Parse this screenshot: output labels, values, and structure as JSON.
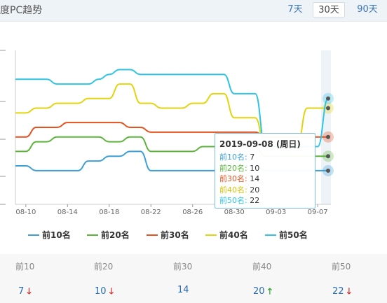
{
  "header": {
    "title": "度PC趋势",
    "ranges": [
      {
        "label": "7天",
        "active": false
      },
      {
        "label": "30天",
        "active": true
      },
      {
        "label": "90天",
        "active": false
      }
    ]
  },
  "chart_data": {
    "type": "line",
    "x": [
      "08-09",
      "08-10",
      "08-11",
      "08-12",
      "08-13",
      "08-14",
      "08-15",
      "08-16",
      "08-17",
      "08-18",
      "08-19",
      "08-20",
      "08-21",
      "08-22",
      "08-23",
      "08-24",
      "08-25",
      "08-26",
      "08-27",
      "08-28",
      "08-29",
      "08-30",
      "08-31",
      "09-01",
      "09-02",
      "09-03",
      "09-04",
      "09-05",
      "09-06",
      "09-07",
      "09-08"
    ],
    "xtick_labels": [
      "08-10",
      "08-14",
      "08-18",
      "08-22",
      "08-26",
      "08-30",
      "09-03",
      "09-07"
    ],
    "ylim": [
      0,
      32
    ],
    "series": [
      {
        "name": "前10名",
        "color": "#3d9fd8",
        "values": [
          8,
          8,
          7,
          7,
          7,
          7,
          7,
          9,
          9,
          10,
          10,
          11,
          11,
          7,
          7,
          7,
          7,
          7,
          7,
          7,
          8,
          8,
          8,
          8,
          7,
          7,
          7,
          7,
          7,
          7,
          7
        ]
      },
      {
        "name": "前20名",
        "color": "#5cb53a",
        "values": [
          11,
          11,
          13,
          13,
          14,
          14,
          14,
          14,
          14,
          13,
          13,
          14,
          14,
          11,
          11,
          11,
          11,
          11,
          12,
          12,
          12,
          12,
          12,
          12,
          10,
          10,
          10,
          10,
          10,
          10,
          10
        ]
      },
      {
        "name": "前30名",
        "color": "#e5511f",
        "values": [
          14,
          14,
          16,
          16,
          16,
          17,
          17,
          17,
          17,
          17,
          17,
          16,
          16,
          15,
          15,
          15,
          15,
          15,
          15,
          15,
          15,
          15,
          15,
          15,
          14,
          14,
          14,
          14,
          14,
          14,
          14
        ]
      },
      {
        "name": "前40名",
        "color": "#e2d40e",
        "values": [
          19,
          19,
          20,
          20,
          21,
          21,
          21,
          22,
          22,
          22,
          25,
          25,
          21,
          21,
          20,
          20,
          20,
          21,
          21,
          23,
          23,
          18,
          18,
          18,
          12,
          12,
          12,
          12,
          20,
          20,
          20
        ]
      },
      {
        "name": "前50名",
        "color": "#2ec4e6",
        "values": [
          26,
          26,
          26,
          26,
          25,
          25,
          25,
          25,
          26,
          27,
          28,
          28,
          27,
          27,
          27,
          27,
          27,
          27,
          27,
          27,
          27,
          23,
          23,
          23,
          12,
          12,
          12,
          12,
          12,
          12,
          22
        ]
      }
    ]
  },
  "legend": [
    {
      "label": "前10名",
      "color": "#3d9fd8"
    },
    {
      "label": "前20名",
      "color": "#5cb53a"
    },
    {
      "label": "前30名",
      "color": "#e5511f"
    },
    {
      "label": "前40名",
      "color": "#e2d40e"
    },
    {
      "label": "前50名",
      "color": "#2ec4e6"
    }
  ],
  "tooltip": {
    "date": "2019-09-08 (周日)",
    "rows": [
      {
        "label": "前10名:",
        "value": "7",
        "color": "#3d9fd8"
      },
      {
        "label": "前20名:",
        "value": "10",
        "color": "#5cb53a"
      },
      {
        "label": "前30名:",
        "value": "14",
        "color": "#e5511f"
      },
      {
        "label": "前40名:",
        "value": "20",
        "color": "#e2d40e"
      },
      {
        "label": "前50名:",
        "value": "22",
        "color": "#2ec4e6"
      }
    ]
  },
  "stats": [
    {
      "label": "前10",
      "value": "7",
      "trend": "down",
      "arrow": "🡓"
    },
    {
      "label": "前20",
      "value": "10",
      "trend": "down",
      "arrow": "🡓"
    },
    {
      "label": "前30",
      "value": "14",
      "trend": "none",
      "arrow": ""
    },
    {
      "label": "前40",
      "value": "20",
      "trend": "up",
      "arrow": "🡑"
    },
    {
      "label": "前50",
      "value": "22",
      "trend": "down",
      "arrow": "🡓"
    }
  ]
}
